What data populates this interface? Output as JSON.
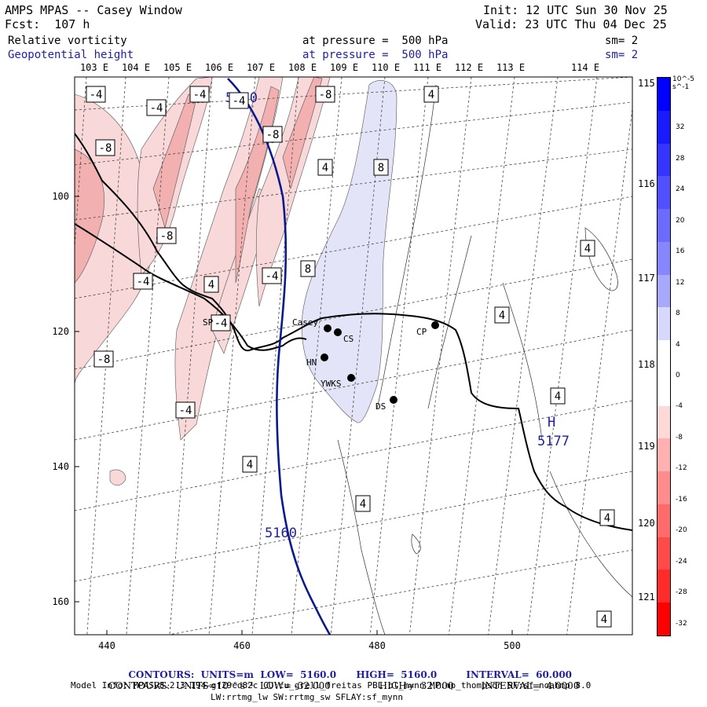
{
  "header": {
    "title": "AMPS MPAS -- Casey Window",
    "forecast": "Fcst:  107 h",
    "init": "Init: 12 UTC Sun 30 Nov 25",
    "valid": "Valid: 23 UTC Thu 04 Dec 25",
    "field1_name": "Relative vorticity",
    "field1_level": "at pressure =  500 hPa",
    "field1_smooth": "sm= 2",
    "field2_name": "Geopotential height",
    "field2_level": "at pressure =  500 hPa",
    "field2_smooth": "sm= 2"
  },
  "colors": {
    "height_contour": "#0a1a8c",
    "text_blue": "#1f1fa0",
    "vort_neg": "#f4c8c8",
    "vort_pos": "#e4e4f8"
  },
  "map": {
    "top_lon_labels": [
      "103 E",
      "104 E",
      "105 E",
      "106 E",
      "107 E",
      "108 E",
      "109 E",
      "110 E",
      "111 E",
      "112 E",
      "113 E",
      "114 E"
    ],
    "right_lon_labels": [
      "115 E",
      "116 E",
      "117 E",
      "118 E",
      "119 E",
      "120 E",
      "121 E"
    ],
    "x_ticks": [
      "440",
      "460",
      "480",
      "500"
    ],
    "y_ticks": [
      "100",
      "120",
      "140",
      "160"
    ],
    "height_labels": [
      "5160",
      "5160"
    ],
    "high_marker": {
      "letter": "H",
      "value": "5177"
    },
    "vort_labels": [
      "-4",
      "-4",
      "-4",
      "-8",
      "-8",
      "-8",
      "-8",
      "-4",
      "-4",
      "-4",
      "-4",
      "-8",
      "-4",
      "4",
      "8",
      "8",
      "4",
      "4",
      "4",
      "4",
      "4",
      "4",
      "4"
    ],
    "stations": [
      {
        "name": "Casey"
      },
      {
        "name": "CS"
      },
      {
        "name": "HN"
      },
      {
        "name": "YWKS"
      },
      {
        "name": "DS"
      },
      {
        "name": "CP"
      },
      {
        "name": "SP"
      }
    ]
  },
  "colorbar": {
    "unit": "10^-5 s^-1",
    "labels": [
      "32",
      "28",
      "24",
      "20",
      "16",
      "12",
      "8",
      "4",
      "0",
      "-4",
      "-8",
      "-12",
      "-16",
      "-20",
      "-24",
      "-28",
      "-32"
    ],
    "colors": [
      "#0000ff",
      "#1a1aff",
      "#3535ff",
      "#5050ff",
      "#6b6bff",
      "#8686ff",
      "#a8a8ff",
      "#d8d8ff",
      "#ffffff",
      "#ffffff",
      "#ffd8d8",
      "#ffb0b0",
      "#ff8c8c",
      "#ff6a6a",
      "#ff4a4a",
      "#ff2a2a",
      "#ff0000"
    ]
  },
  "footer": {
    "line1_a": "CONTOURS:  UNITS=m  LOW=  5160.0",
    "line1_b": "HIGH=  5160.0",
    "line1_c": "INTERVAL=  60.000",
    "line2_a": "CONTOURS:  UNITS=10⁻⁵ s⁻¹  LOW= -32.000",
    "line2_b": "HIGH=  32.000",
    "line2_c": "INTERVAL=  4.0000",
    "model_info": "Model Info: MPASv8.2.3-194-gf29cd82c CU:cu_grell_freitas PBL:bl_mynn MP:mp_thompson SF:sf_noahmp 8.0",
    "model_info2": "LW:rrtmg_lw SW:rrtmg_sw SFLAY:sf_mynn"
  }
}
